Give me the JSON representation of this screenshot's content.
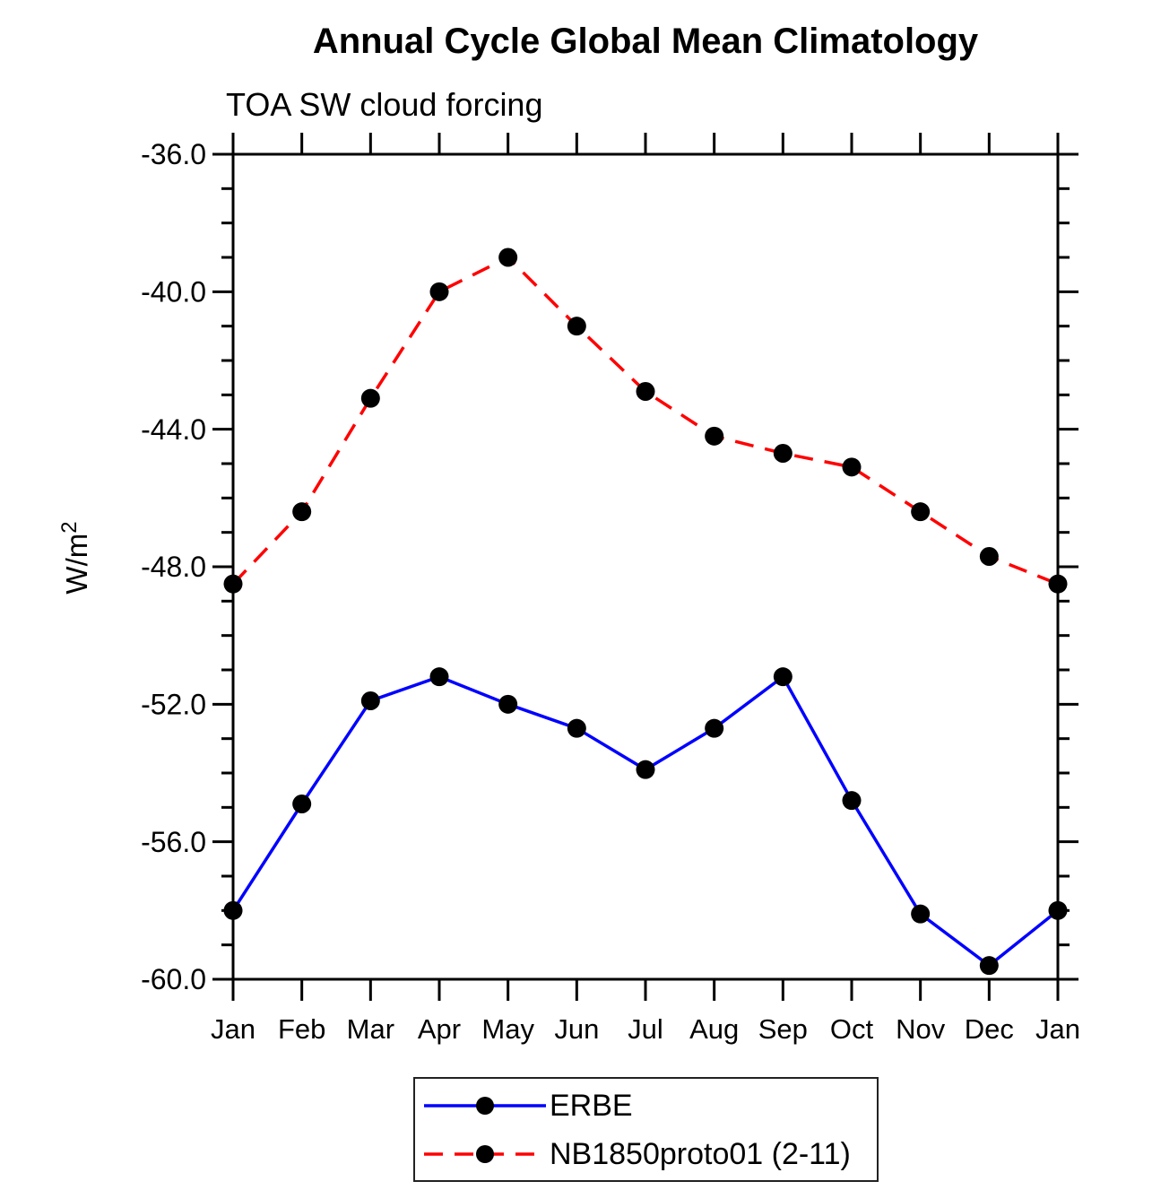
{
  "header": {
    "title": "Annual Cycle Global Mean Climatology",
    "subtitle": "TOA SW cloud forcing"
  },
  "chart_data": {
    "type": "line",
    "title": "Annual Cycle Global Mean Climatology",
    "subtitle": "TOA SW cloud forcing",
    "ylabel": "W/m²",
    "xlabel": "",
    "x_tick_labels": [
      "Jan",
      "Feb",
      "Mar",
      "Apr",
      "May",
      "Jun",
      "Jul",
      "Aug",
      "Sep",
      "Oct",
      "Nov",
      "Dec",
      "Jan"
    ],
    "ylim": [
      -60.0,
      -36.0
    ],
    "y_ticks": [
      -36.0,
      -40.0,
      -44.0,
      -48.0,
      -52.0,
      -56.0,
      -60.0
    ],
    "y_tick_labels": [
      "-36.0",
      "-40.0",
      "-44.0",
      "-48.0",
      "-52.0",
      "-56.0",
      "-60.0"
    ],
    "y_minor_step": 1.0,
    "grid": false,
    "legend_position": "bottom-center",
    "series": [
      {
        "name": "ERBE",
        "line_style": "solid",
        "color": "#0000ff",
        "marker": "filled-circle",
        "marker_color": "#000000",
        "values": [
          -58.0,
          -54.9,
          -51.9,
          -51.2,
          -52.0,
          -52.7,
          -53.9,
          -52.7,
          -51.2,
          -54.8,
          -58.1,
          -59.6,
          -58.0
        ]
      },
      {
        "name": "NB1850proto01 (2-11)",
        "line_style": "dashed",
        "color": "#ff0000",
        "marker": "filled-circle",
        "marker_color": "#000000",
        "values": [
          -48.5,
          -46.4,
          -43.1,
          -40.0,
          -39.0,
          -41.0,
          -42.9,
          -44.2,
          -44.7,
          -45.1,
          -46.4,
          -47.7,
          -48.5
        ]
      }
    ]
  },
  "colors": {
    "axis": "#000000",
    "text": "#000000",
    "erbe_line": "#0000ff",
    "model_line": "#ff0000",
    "marker": "#000000"
  }
}
